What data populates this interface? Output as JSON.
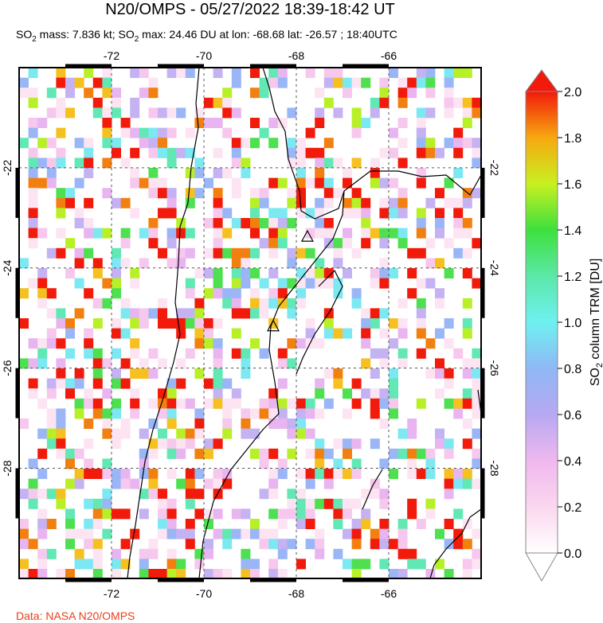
{
  "header": {
    "title": "N20/OMPS - 05/27/2022 18:39-18:42 UT",
    "subtitle": [
      "SO",
      "2",
      " mass: 7.836 kt; SO",
      "2",
      " max: 24.46 DU at lon: -68.68 lat: -26.57 ; 18:40UTC"
    ]
  },
  "map": {
    "xlim": [
      -74,
      -64
    ],
    "ylim": [
      -30.2,
      -20
    ],
    "xticks": [
      -72,
      -70,
      -68,
      -66
    ],
    "yticks": [
      -22,
      -24,
      -26,
      -28
    ],
    "volcanoes": [
      {
        "lon": -67.76,
        "lat": -23.37
      },
      {
        "lon": -68.5,
        "lat": -25.16
      }
    ]
  },
  "colorbar": {
    "lim": [
      0,
      2
    ],
    "ticks": [
      {
        "value": 0,
        "label": "0.0"
      },
      0.2,
      0.4,
      0.6,
      0.8,
      {
        "value": 1,
        "label": "1.0"
      },
      1.2,
      1.4,
      1.6,
      1.8,
      {
        "value": 2,
        "label": "2.0"
      }
    ],
    "label": [
      "SO",
      "2",
      " column TRM [DU]"
    ]
  },
  "footer": "Data: NASA N20/OMPS"
}
